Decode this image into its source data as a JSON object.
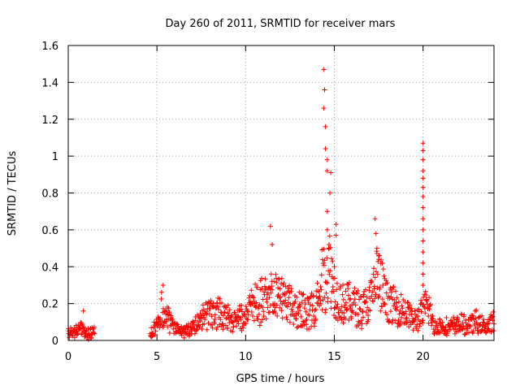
{
  "chart_data": {
    "type": "scatter",
    "title": "Day 260 of 2011, SRMTID for receiver mars",
    "xlabel": "GPS time / hours",
    "ylabel": "SRMTID / TECUs",
    "xlim": [
      0,
      24
    ],
    "ylim": [
      0,
      1.6
    ],
    "xticks": [
      0,
      5,
      10,
      15,
      20
    ],
    "xtick_labels": [
      "0",
      "5",
      "10",
      "15",
      "20"
    ],
    "yticks": [
      0,
      0.2,
      0.4,
      0.6,
      0.8,
      1,
      1.2,
      1.4,
      1.6
    ],
    "ytick_labels": [
      "0",
      "0.2",
      "0.4",
      "0.6",
      "0.8",
      "1",
      "1.2",
      "1.4",
      "1.6"
    ],
    "grid": true,
    "marker": "+",
    "marker_color": "#ff0000",
    "series": [
      {
        "name": "SRMTID",
        "profile": [
          [
            0.0,
            0.04
          ],
          [
            0.4,
            0.05
          ],
          [
            0.8,
            0.06
          ],
          [
            1.0,
            0.04
          ],
          [
            1.4,
            0.05
          ],
          [
            4.7,
            0.04
          ],
          [
            5.0,
            0.08
          ],
          [
            5.3,
            0.18
          ],
          [
            5.6,
            0.12
          ],
          [
            6.0,
            0.06
          ],
          [
            6.5,
            0.05
          ],
          [
            7.0,
            0.07
          ],
          [
            7.5,
            0.12
          ],
          [
            8.0,
            0.15
          ],
          [
            8.5,
            0.14
          ],
          [
            9.0,
            0.13
          ],
          [
            9.5,
            0.1
          ],
          [
            10.0,
            0.16
          ],
          [
            10.5,
            0.2
          ],
          [
            11.0,
            0.22
          ],
          [
            11.5,
            0.25
          ],
          [
            12.0,
            0.22
          ],
          [
            12.5,
            0.18
          ],
          [
            13.0,
            0.17
          ],
          [
            13.5,
            0.15
          ],
          [
            14.0,
            0.2
          ],
          [
            14.4,
            0.35
          ],
          [
            14.8,
            0.4
          ],
          [
            15.0,
            0.25
          ],
          [
            15.5,
            0.2
          ],
          [
            16.0,
            0.2
          ],
          [
            16.5,
            0.17
          ],
          [
            17.0,
            0.2
          ],
          [
            17.4,
            0.35
          ],
          [
            17.6,
            0.3
          ],
          [
            18.0,
            0.2
          ],
          [
            18.5,
            0.18
          ],
          [
            19.0,
            0.16
          ],
          [
            19.5,
            0.1
          ],
          [
            20.0,
            0.15
          ],
          [
            20.3,
            0.2
          ],
          [
            20.6,
            0.07
          ],
          [
            21.0,
            0.08
          ],
          [
            21.5,
            0.07
          ],
          [
            22.0,
            0.09
          ],
          [
            22.5,
            0.08
          ],
          [
            23.0,
            0.1
          ],
          [
            23.5,
            0.07
          ],
          [
            24.0,
            0.1
          ]
        ],
        "gaps": [
          [
            1.5,
            4.6
          ]
        ],
        "spikes": [
          [
            0.85,
            0.16
          ],
          [
            5.35,
            0.3
          ],
          [
            11.4,
            0.62
          ],
          [
            11.5,
            0.52
          ],
          [
            14.4,
            1.47
          ],
          [
            14.45,
            1.36
          ],
          [
            14.4,
            1.26
          ],
          [
            14.5,
            1.16
          ],
          [
            14.5,
            1.04
          ],
          [
            14.6,
            0.98
          ],
          [
            14.6,
            0.92
          ],
          [
            14.8,
            0.91
          ],
          [
            14.75,
            0.8
          ],
          [
            15.1,
            0.63
          ],
          [
            15.1,
            0.57
          ],
          [
            17.3,
            0.66
          ],
          [
            17.35,
            0.58
          ],
          [
            17.4,
            0.5
          ],
          [
            17.5,
            0.44
          ],
          [
            20.0,
            1.07
          ],
          [
            20.0,
            1.03
          ],
          [
            20.0,
            0.98
          ],
          [
            20.0,
            0.92
          ],
          [
            20.0,
            0.88
          ],
          [
            20.0,
            0.83
          ],
          [
            20.0,
            0.78
          ],
          [
            20.0,
            0.72
          ],
          [
            20.0,
            0.66
          ],
          [
            20.0,
            0.6
          ],
          [
            20.0,
            0.54
          ],
          [
            20.0,
            0.48
          ],
          [
            20.0,
            0.42
          ],
          [
            20.0,
            0.36
          ],
          [
            20.0,
            0.3
          ],
          [
            14.6,
            0.7
          ],
          [
            14.6,
            0.6
          ],
          [
            14.7,
            0.52
          ],
          [
            15.0,
            0.4
          ],
          [
            15.0,
            0.0
          ]
        ]
      }
    ]
  }
}
